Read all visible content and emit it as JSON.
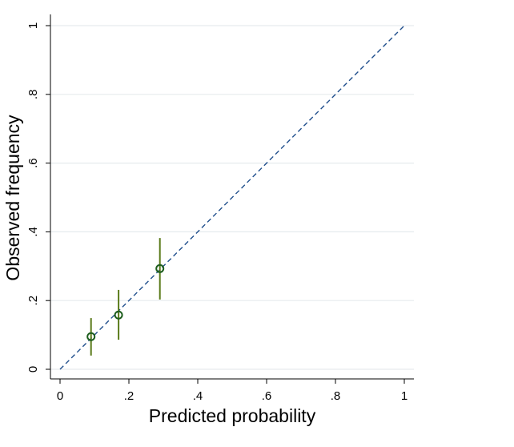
{
  "chart_data": {
    "type": "calibration",
    "xlabel": "Predicted probability",
    "ylabel": "Observed frequency",
    "x": [
      0.09,
      0.17,
      0.29
    ],
    "values": [
      0.095,
      0.158,
      0.293
    ],
    "lower": [
      0.04,
      0.086,
      0.203
    ],
    "upper": [
      0.149,
      0.231,
      0.382
    ],
    "point_color": "#1e5e1e",
    "errorbar_color": "#5a7a1a",
    "reference_line": {
      "x": [
        0,
        1
      ],
      "y": [
        0,
        1
      ],
      "color": "#1f4e8c"
    },
    "xlim": [
      0,
      1
    ],
    "ylim": [
      0,
      1
    ],
    "xticks": [
      0,
      {
        "value": 0.2,
        "label": ".2"
      },
      {
        "value": 0.4,
        "label": ".4"
      },
      {
        "value": 0.6,
        "label": ".6"
      },
      {
        "value": 0.8,
        "label": ".8"
      },
      1
    ],
    "yticks": [
      0,
      {
        "value": 0.2,
        "label": ".2"
      },
      {
        "value": 0.4,
        "label": ".4"
      },
      {
        "value": 0.6,
        "label": ".6"
      },
      {
        "value": 0.8,
        "label": ".8"
      },
      1
    ],
    "grid": true
  }
}
